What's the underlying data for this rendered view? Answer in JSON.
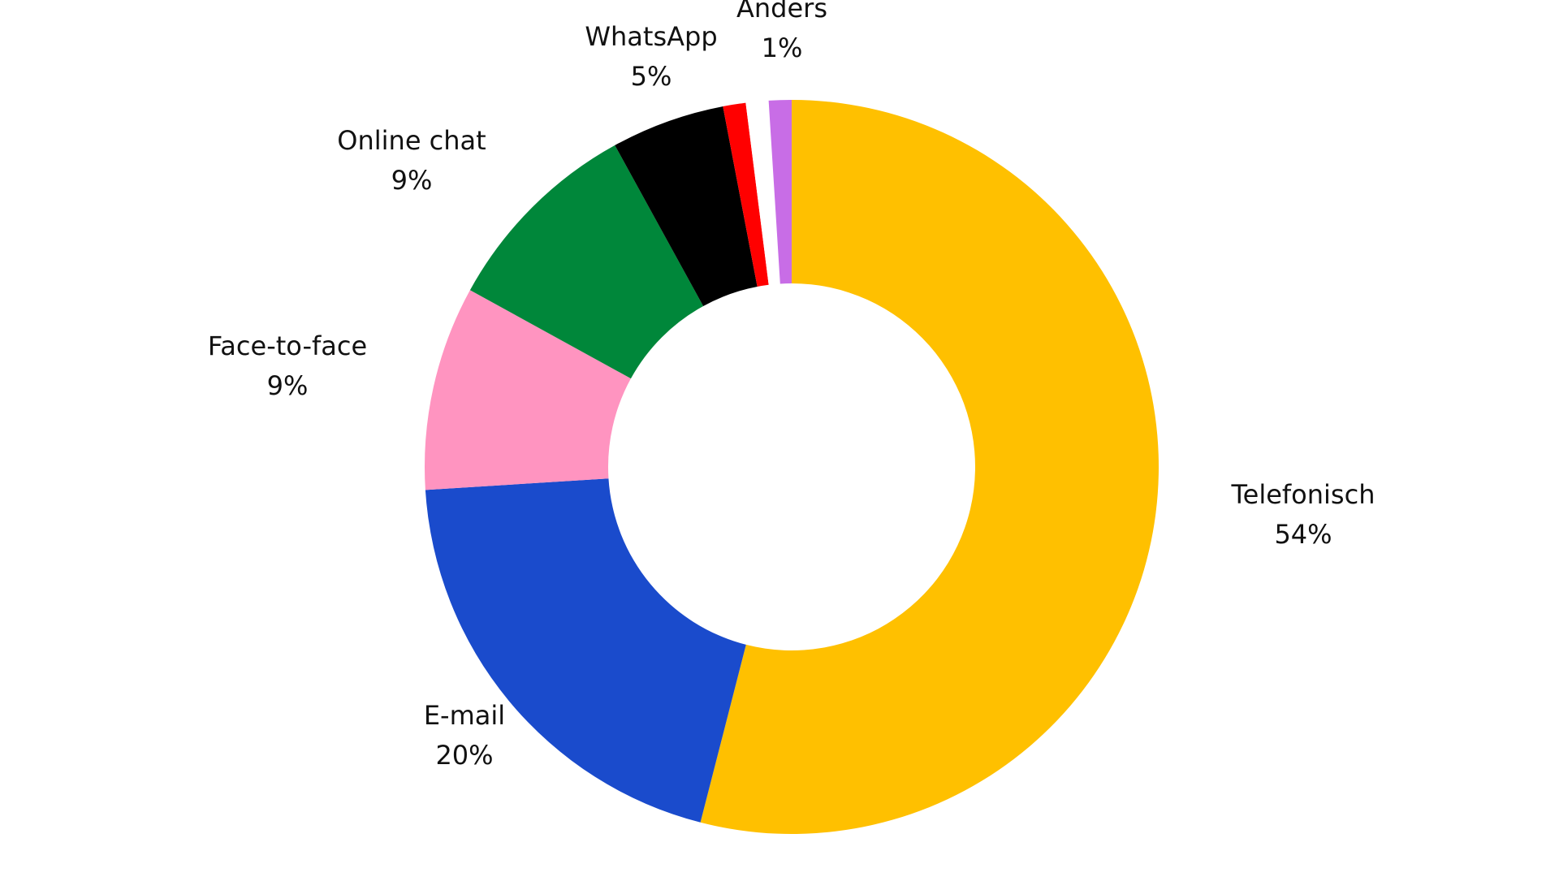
{
  "chart_data": {
    "type": "pie",
    "donut": true,
    "title": "",
    "legend": "none",
    "series": [
      {
        "name": "Telefonisch",
        "value": 54,
        "label": "54%",
        "color": "#FFC000"
      },
      {
        "name": "E-mail",
        "value": 20,
        "label": "20%",
        "color": "#1A4BCC"
      },
      {
        "name": "Face-to-face",
        "value": 9,
        "label": "9%",
        "color": "#FF94C0"
      },
      {
        "name": "Online chat",
        "value": 9,
        "label": "9%",
        "color": "#00873A"
      },
      {
        "name": "WhatsApp",
        "value": 5,
        "label": "5%",
        "color": "#000000"
      },
      {
        "name": "",
        "value": 1,
        "label": "",
        "color": "#FF0000"
      },
      {
        "name": "",
        "value": 1,
        "label": "",
        "color": "#FFFFFF"
      },
      {
        "name": "Anders",
        "value": 1,
        "label": "1%",
        "color": "#C86DE6"
      }
    ]
  }
}
